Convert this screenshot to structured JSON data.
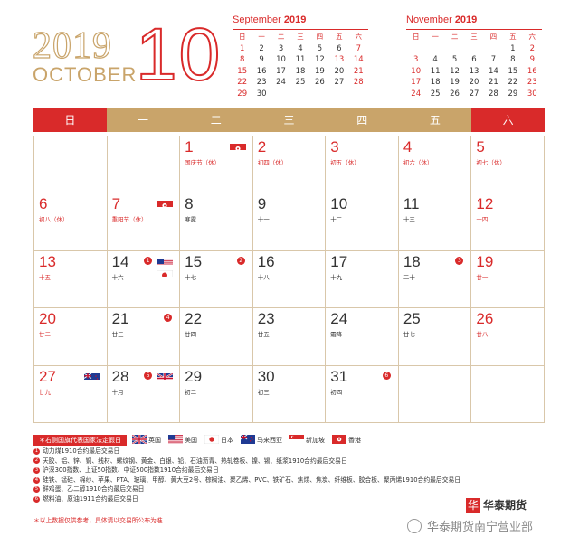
{
  "header": {
    "year": "2019",
    "month_name": "OCTOBER",
    "month_number": "10"
  },
  "mini_calendars": [
    {
      "month": "September",
      "year": "2019",
      "weekdays": [
        "日",
        "一",
        "二",
        "三",
        "四",
        "五",
        "六"
      ],
      "cells": [
        "1",
        "2",
        "3",
        "4",
        "5",
        "6",
        "7",
        "8",
        "9",
        "10",
        "11",
        "12",
        "13",
        "14",
        "15",
        "16",
        "17",
        "18",
        "19",
        "20",
        "21",
        "22",
        "23",
        "24",
        "25",
        "26",
        "27",
        "28",
        "29",
        "30",
        "",
        "",
        "",
        "",
        ""
      ],
      "red_days": [
        "1",
        "7",
        "8",
        "13",
        "14",
        "15",
        "21",
        "22",
        "28",
        "29"
      ]
    },
    {
      "month": "November",
      "year": "2019",
      "weekdays": [
        "日",
        "一",
        "二",
        "三",
        "四",
        "五",
        "六"
      ],
      "cells": [
        "",
        "",
        "",
        "",
        "",
        "1",
        "2",
        "3",
        "4",
        "5",
        "6",
        "7",
        "8",
        "9",
        "10",
        "11",
        "12",
        "13",
        "14",
        "15",
        "16",
        "17",
        "18",
        "19",
        "20",
        "21",
        "22",
        "23",
        "24",
        "25",
        "26",
        "27",
        "28",
        "29",
        "30"
      ],
      "red_days": [
        "2",
        "3",
        "9",
        "10",
        "16",
        "17",
        "23",
        "24",
        "30"
      ]
    }
  ],
  "weekdays": [
    "日",
    "一",
    "二",
    "三",
    "四",
    "五",
    "六"
  ],
  "days": [
    {
      "n": "",
      "l": ""
    },
    {
      "n": "",
      "l": ""
    },
    {
      "n": "1",
      "l": "国庆节（休）",
      "red": true,
      "flag": "hk"
    },
    {
      "n": "2",
      "l": "初四（休）",
      "red": true
    },
    {
      "n": "3",
      "l": "初五（休）",
      "red": true
    },
    {
      "n": "4",
      "l": "初六（休）",
      "red": true
    },
    {
      "n": "5",
      "l": "初七（休）",
      "red": true
    },
    {
      "n": "6",
      "l": "初八（休）",
      "red": true
    },
    {
      "n": "7",
      "l": "重阳节（休）",
      "red": true,
      "flag": "hk"
    },
    {
      "n": "8",
      "l": "寒露"
    },
    {
      "n": "9",
      "l": "十一"
    },
    {
      "n": "10",
      "l": "十二"
    },
    {
      "n": "11",
      "l": "十三"
    },
    {
      "n": "12",
      "l": "十四",
      "red": true
    },
    {
      "n": "13",
      "l": "十五",
      "red": true
    },
    {
      "n": "14",
      "l": "十六",
      "flag": "us",
      "flag2": "jp",
      "badge": "1"
    },
    {
      "n": "15",
      "l": "十七",
      "badge": "2"
    },
    {
      "n": "16",
      "l": "十八"
    },
    {
      "n": "17",
      "l": "十九"
    },
    {
      "n": "18",
      "l": "二十",
      "badge": "3"
    },
    {
      "n": "19",
      "l": "廿一",
      "red": true
    },
    {
      "n": "20",
      "l": "廿二",
      "red": true
    },
    {
      "n": "21",
      "l": "廿三",
      "badge": "4"
    },
    {
      "n": "22",
      "l": "廿四"
    },
    {
      "n": "23",
      "l": "廿五"
    },
    {
      "n": "24",
      "l": "霜降"
    },
    {
      "n": "25",
      "l": "廿七"
    },
    {
      "n": "26",
      "l": "廿八",
      "red": true
    },
    {
      "n": "27",
      "l": "廿九",
      "red": true,
      "flag": "nz"
    },
    {
      "n": "28",
      "l": "十月",
      "flag": "uk",
      "badge": "5"
    },
    {
      "n": "29",
      "l": "初二"
    },
    {
      "n": "30",
      "l": "初三"
    },
    {
      "n": "31",
      "l": "初四",
      "badge": "6"
    },
    {
      "n": "",
      "l": ""
    },
    {
      "n": "",
      "l": ""
    }
  ],
  "legend": {
    "caption": "＊右侧国旗代表国家法定假日",
    "items": [
      {
        "flag": "uk",
        "label": "英国"
      },
      {
        "flag": "us",
        "label": "美国"
      },
      {
        "flag": "jp",
        "label": "日本"
      },
      {
        "flag": "nz",
        "label": "马来西亚"
      },
      {
        "flag": "sg",
        "label": "新加坡"
      },
      {
        "flag": "hk",
        "label": "香港"
      }
    ]
  },
  "notes": [
    {
      "num": "1",
      "text": "动力煤1910合约最后交易日"
    },
    {
      "num": "2",
      "text": "天胶、铝、锌、铜、线材、螺纹钢、黄金、白银、铅、石油沥青、热轧卷板、镍、锡、纸浆1910合约最后交易日"
    },
    {
      "num": "3",
      "text": "沪深300指数、上证50指数、中证500指数1910合约最后交易日"
    },
    {
      "num": "4",
      "text": "硅铁、锰硅、棉纱、苹果、PTA、玻璃、甲醇、黄大豆2号、棕榈油、聚乙烯、PVC、铁矿石、焦煤、焦炭、纤维板、胶合板、聚丙烯1910合约最后交易日"
    },
    {
      "num": "5",
      "text": "鲜鸡蛋、乙二醇1910合约最后交易日"
    },
    {
      "num": "6",
      "text": "燃料油、原油1911合约最后交易日"
    }
  ],
  "disclaimer": "＊以上数据仅供参考，具体请以交易所公布为准",
  "logo": {
    "mark": "华",
    "name": "华泰期货"
  },
  "watermark": "华泰期货南宁营业部",
  "colors": {
    "red": "#d92a2a",
    "gold": "#c9a46a"
  }
}
